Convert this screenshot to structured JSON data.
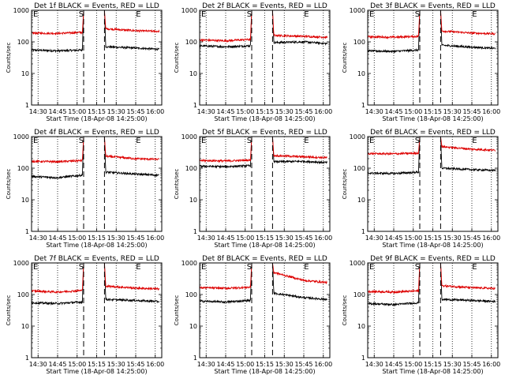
{
  "figure": {
    "xlabel": "Start Time (18-Apr-08 14:25:00)",
    "ylabel": "Counts/sec",
    "x_tick_labels": [
      "14:30",
      "14:45",
      "15:00",
      "15:15",
      "15:30",
      "15:45",
      "16:00"
    ],
    "y_tick_labels": [
      "1",
      "10",
      "100",
      "1000"
    ],
    "colors": {
      "events": "#000000",
      "lld": "#dd0000"
    }
  },
  "chart_data": [
    {
      "type": "line",
      "title": "Det 1f BLACK = Events, RED = LLD",
      "xlabel": "Start Time (18-Apr-08 14:25:00)",
      "ylabel": "Counts/sec",
      "ylim": [
        1,
        1000
      ],
      "y_scale": "log",
      "x_range": [
        "14:25",
        "16:05"
      ],
      "markers": [
        {
          "label": "E",
          "time": "14:25"
        },
        {
          "label": "S",
          "time": "15:03"
        },
        {
          "label": "E",
          "time": "15:47"
        }
      ],
      "dashed_lines": [
        "15:05",
        "15:21"
      ],
      "dotted_lines": [
        "14:30",
        "14:45",
        "15:00",
        "15:15",
        "15:30",
        "15:45",
        "16:00"
      ],
      "series": [
        {
          "name": "Events",
          "color": "#000000",
          "x": [
            "14:25",
            "14:45",
            "15:04",
            "15:05",
            "15:21",
            "15:22",
            "15:45",
            "16:03"
          ],
          "values": [
            55,
            52,
            55,
            1000,
            1000,
            70,
            64,
            58
          ]
        },
        {
          "name": "LLD",
          "color": "#dd0000",
          "x": [
            "14:25",
            "14:45",
            "15:04",
            "15:05",
            "15:21",
            "15:22",
            "15:45",
            "16:03"
          ],
          "values": [
            190,
            185,
            200,
            1000,
            1000,
            260,
            225,
            215
          ]
        }
      ]
    },
    {
      "type": "line",
      "title": "Det 2f BLACK = Events, RED = LLD",
      "xlabel": "Start Time (18-Apr-08 14:25:00)",
      "ylabel": "Counts/sec",
      "ylim": [
        1,
        1000
      ],
      "y_scale": "log",
      "x_range": [
        "14:25",
        "16:05"
      ],
      "markers": [
        {
          "label": "E",
          "time": "14:25"
        },
        {
          "label": "S",
          "time": "15:03"
        },
        {
          "label": "E",
          "time": "15:47"
        }
      ],
      "dashed_lines": [
        "15:05",
        "15:21"
      ],
      "dotted_lines": [
        "14:30",
        "14:45",
        "15:00",
        "15:15",
        "15:30",
        "15:45",
        "16:00"
      ],
      "series": [
        {
          "name": "Events",
          "color": "#000000",
          "x": [
            "14:25",
            "14:45",
            "15:04",
            "15:05",
            "15:21",
            "15:22",
            "15:45",
            "16:03"
          ],
          "values": [
            75,
            70,
            75,
            1000,
            1000,
            95,
            100,
            88
          ]
        },
        {
          "name": "LLD",
          "color": "#dd0000",
          "x": [
            "14:25",
            "14:45",
            "15:04",
            "15:05",
            "15:21",
            "15:22",
            "15:45",
            "16:03"
          ],
          "values": [
            115,
            108,
            120,
            1000,
            1000,
            160,
            150,
            140
          ]
        }
      ]
    },
    {
      "type": "line",
      "title": "Det 3f BLACK = Events, RED = LLD",
      "xlabel": "Start Time (18-Apr-08 14:25:00)",
      "ylabel": "Counts/sec",
      "ylim": [
        1,
        1000
      ],
      "y_scale": "log",
      "x_range": [
        "14:25",
        "16:05"
      ],
      "markers": [
        {
          "label": "E",
          "time": "14:25"
        },
        {
          "label": "S",
          "time": "15:03"
        },
        {
          "label": "E",
          "time": "15:47"
        }
      ],
      "dashed_lines": [
        "15:05",
        "15:21"
      ],
      "dotted_lines": [
        "14:30",
        "14:45",
        "15:00",
        "15:15",
        "15:30",
        "15:45",
        "16:00"
      ],
      "series": [
        {
          "name": "Events",
          "color": "#000000",
          "x": [
            "14:25",
            "14:45",
            "15:04",
            "15:05",
            "15:21",
            "15:22",
            "15:45",
            "16:03"
          ],
          "values": [
            52,
            50,
            55,
            1000,
            1000,
            78,
            68,
            62
          ]
        },
        {
          "name": "LLD",
          "color": "#dd0000",
          "x": [
            "14:25",
            "14:45",
            "15:04",
            "15:05",
            "15:21",
            "15:22",
            "15:45",
            "16:03"
          ],
          "values": [
            145,
            140,
            150,
            1000,
            1000,
            220,
            190,
            180
          ]
        }
      ]
    },
    {
      "type": "line",
      "title": "Det 4f BLACK = Events, RED = LLD",
      "xlabel": "Start Time (18-Apr-08 14:25:00)",
      "ylabel": "Counts/sec",
      "ylim": [
        1,
        1000
      ],
      "y_scale": "log",
      "x_range": [
        "14:25",
        "16:05"
      ],
      "markers": [
        {
          "label": "E",
          "time": "14:25"
        },
        {
          "label": "S",
          "time": "15:03"
        },
        {
          "label": "E",
          "time": "15:47"
        }
      ],
      "dashed_lines": [
        "15:05",
        "15:21"
      ],
      "dotted_lines": [
        "14:30",
        "14:45",
        "15:00",
        "15:15",
        "15:30",
        "15:45",
        "16:00"
      ],
      "series": [
        {
          "name": "Events",
          "color": "#000000",
          "x": [
            "14:25",
            "14:45",
            "15:04",
            "15:05",
            "15:21",
            "15:22",
            "15:45",
            "16:03"
          ],
          "values": [
            55,
            50,
            60,
            1000,
            1000,
            75,
            65,
            60
          ]
        },
        {
          "name": "LLD",
          "color": "#dd0000",
          "x": [
            "14:25",
            "14:45",
            "15:04",
            "15:05",
            "15:21",
            "15:22",
            "15:45",
            "16:03"
          ],
          "values": [
            165,
            160,
            175,
            1000,
            1000,
            240,
            200,
            190
          ]
        }
      ]
    },
    {
      "type": "line",
      "title": "Det 5f BLACK = Events, RED = LLD",
      "xlabel": "Start Time (18-Apr-08 14:25:00)",
      "ylabel": "Counts/sec",
      "ylim": [
        1,
        1000
      ],
      "y_scale": "log",
      "x_range": [
        "14:25",
        "16:05"
      ],
      "markers": [
        {
          "label": "E",
          "time": "14:25"
        },
        {
          "label": "S",
          "time": "15:03"
        },
        {
          "label": "E",
          "time": "15:47"
        }
      ],
      "dashed_lines": [
        "15:05",
        "15:21"
      ],
      "dotted_lines": [
        "14:30",
        "14:45",
        "15:00",
        "15:15",
        "15:30",
        "15:45",
        "16:00"
      ],
      "series": [
        {
          "name": "Events",
          "color": "#000000",
          "x": [
            "14:25",
            "14:45",
            "15:04",
            "15:05",
            "15:21",
            "15:22",
            "15:45",
            "16:03"
          ],
          "values": [
            115,
            112,
            120,
            1000,
            1000,
            160,
            165,
            150
          ]
        },
        {
          "name": "LLD",
          "color": "#dd0000",
          "x": [
            "14:25",
            "14:45",
            "15:04",
            "15:05",
            "15:21",
            "15:22",
            "15:45",
            "16:03"
          ],
          "values": [
            175,
            170,
            180,
            1000,
            1000,
            250,
            230,
            215
          ]
        }
      ]
    },
    {
      "type": "line",
      "title": "Det 6f BLACK = Events, RED = LLD",
      "xlabel": "Start Time (18-Apr-08 14:25:00)",
      "ylabel": "Counts/sec",
      "ylim": [
        1,
        1000
      ],
      "y_scale": "log",
      "x_range": [
        "14:25",
        "16:05"
      ],
      "markers": [
        {
          "label": "E",
          "time": "14:25"
        },
        {
          "label": "S",
          "time": "15:03"
        },
        {
          "label": "E",
          "time": "15:47"
        }
      ],
      "dashed_lines": [
        "15:05",
        "15:21"
      ],
      "dotted_lines": [
        "14:30",
        "14:45",
        "15:00",
        "15:15",
        "15:30",
        "15:45",
        "16:00"
      ],
      "series": [
        {
          "name": "Events",
          "color": "#000000",
          "x": [
            "14:25",
            "14:45",
            "15:04",
            "15:05",
            "15:21",
            "15:22",
            "15:45",
            "16:03"
          ],
          "values": [
            70,
            68,
            75,
            1000,
            1000,
            100,
            90,
            85
          ]
        },
        {
          "name": "LLD",
          "color": "#dd0000",
          "x": [
            "14:25",
            "14:45",
            "15:04",
            "15:05",
            "15:21",
            "15:22",
            "15:45",
            "16:03"
          ],
          "values": [
            290,
            285,
            300,
            1000,
            1000,
            480,
            400,
            370
          ]
        }
      ]
    },
    {
      "type": "line",
      "title": "Det 7f BLACK = Events, RED = LLD",
      "xlabel": "Start Time (18-Apr-08 14:25:00)",
      "ylabel": "Counts/sec",
      "ylim": [
        1,
        1000
      ],
      "y_scale": "log",
      "x_range": [
        "14:25",
        "16:05"
      ],
      "markers": [
        {
          "label": "E",
          "time": "14:25"
        },
        {
          "label": "S",
          "time": "15:03"
        },
        {
          "label": "E",
          "time": "15:47"
        }
      ],
      "dashed_lines": [
        "15:05",
        "15:21"
      ],
      "dotted_lines": [
        "14:30",
        "14:45",
        "15:00",
        "15:15",
        "15:30",
        "15:45",
        "16:00"
      ],
      "series": [
        {
          "name": "Events",
          "color": "#000000",
          "x": [
            "14:25",
            "14:45",
            "15:04",
            "15:05",
            "15:21",
            "15:22",
            "15:45",
            "16:03"
          ],
          "values": [
            55,
            52,
            58,
            1000,
            1000,
            70,
            65,
            60
          ]
        },
        {
          "name": "LLD",
          "color": "#dd0000",
          "x": [
            "14:25",
            "14:45",
            "15:04",
            "15:05",
            "15:21",
            "15:22",
            "15:45",
            "16:03"
          ],
          "values": [
            130,
            120,
            135,
            1000,
            1000,
            185,
            160,
            150
          ]
        }
      ]
    },
    {
      "type": "line",
      "title": "Det 8f BLACK = Events, RED = LLD",
      "xlabel": "Start Time (18-Apr-08 14:25:00)",
      "ylabel": "Counts/sec",
      "ylim": [
        1,
        1000
      ],
      "y_scale": "log",
      "x_range": [
        "14:25",
        "16:05"
      ],
      "markers": [
        {
          "label": "E",
          "time": "14:25"
        },
        {
          "label": "S",
          "time": "15:03"
        },
        {
          "label": "E",
          "time": "15:47"
        }
      ],
      "dashed_lines": [
        "15:05",
        "15:21"
      ],
      "dotted_lines": [
        "14:30",
        "14:45",
        "15:00",
        "15:15",
        "15:30",
        "15:45",
        "16:00"
      ],
      "series": [
        {
          "name": "Events",
          "color": "#000000",
          "x": [
            "14:25",
            "14:45",
            "15:04",
            "15:05",
            "15:21",
            "15:22",
            "15:45",
            "16:03"
          ],
          "values": [
            62,
            58,
            65,
            1000,
            1000,
            110,
            80,
            70
          ]
        },
        {
          "name": "LLD",
          "color": "#dd0000",
          "x": [
            "14:25",
            "14:45",
            "15:04",
            "15:05",
            "15:21",
            "15:22",
            "15:45",
            "16:03"
          ],
          "values": [
            165,
            158,
            170,
            1000,
            1000,
            500,
            280,
            240
          ]
        }
      ]
    },
    {
      "type": "line",
      "title": "Det 9f BLACK = Events, RED = LLD",
      "xlabel": "Start Time (18-Apr-08 14:25:00)",
      "ylabel": "Counts/sec",
      "ylim": [
        1,
        1000
      ],
      "y_scale": "log",
      "x_range": [
        "14:25",
        "16:05"
      ],
      "markers": [
        {
          "label": "E",
          "time": "14:25"
        },
        {
          "label": "S",
          "time": "15:03"
        },
        {
          "label": "E",
          "time": "15:47"
        }
      ],
      "dashed_lines": [
        "15:05",
        "15:21"
      ],
      "dotted_lines": [
        "14:30",
        "14:45",
        "15:00",
        "15:15",
        "15:30",
        "15:45",
        "16:00"
      ],
      "series": [
        {
          "name": "Events",
          "color": "#000000",
          "x": [
            "14:25",
            "14:45",
            "15:04",
            "15:05",
            "15:21",
            "15:22",
            "15:45",
            "16:03"
          ],
          "values": [
            52,
            48,
            55,
            1000,
            1000,
            70,
            65,
            60
          ]
        },
        {
          "name": "LLD",
          "color": "#dd0000",
          "x": [
            "14:25",
            "14:45",
            "15:04",
            "15:05",
            "15:21",
            "15:22",
            "15:45",
            "16:03"
          ],
          "values": [
            125,
            120,
            130,
            1000,
            1000,
            190,
            165,
            155
          ]
        }
      ]
    }
  ]
}
